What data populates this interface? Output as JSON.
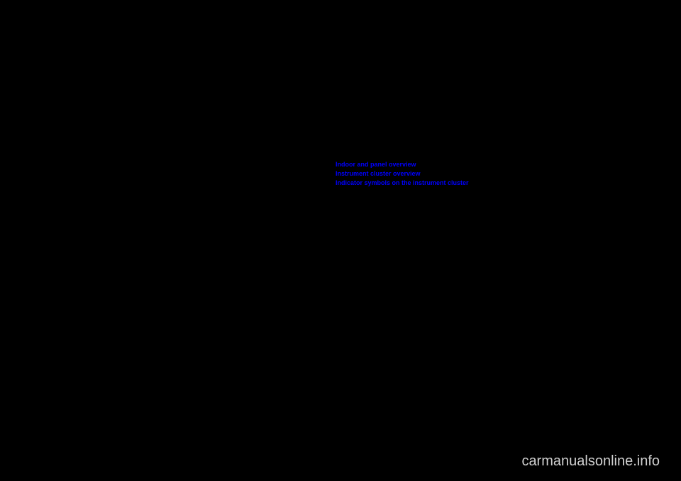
{
  "links": {
    "link1": "Indoor and panel overview",
    "link2": "Instrument cluster overview",
    "link3": "Indicator symbols on the instrument cluster"
  },
  "watermark": "carmanualsonline.info",
  "colors": {
    "background": "#000000",
    "link_color": "#0000ff",
    "watermark_color": "#d0d0d0"
  }
}
